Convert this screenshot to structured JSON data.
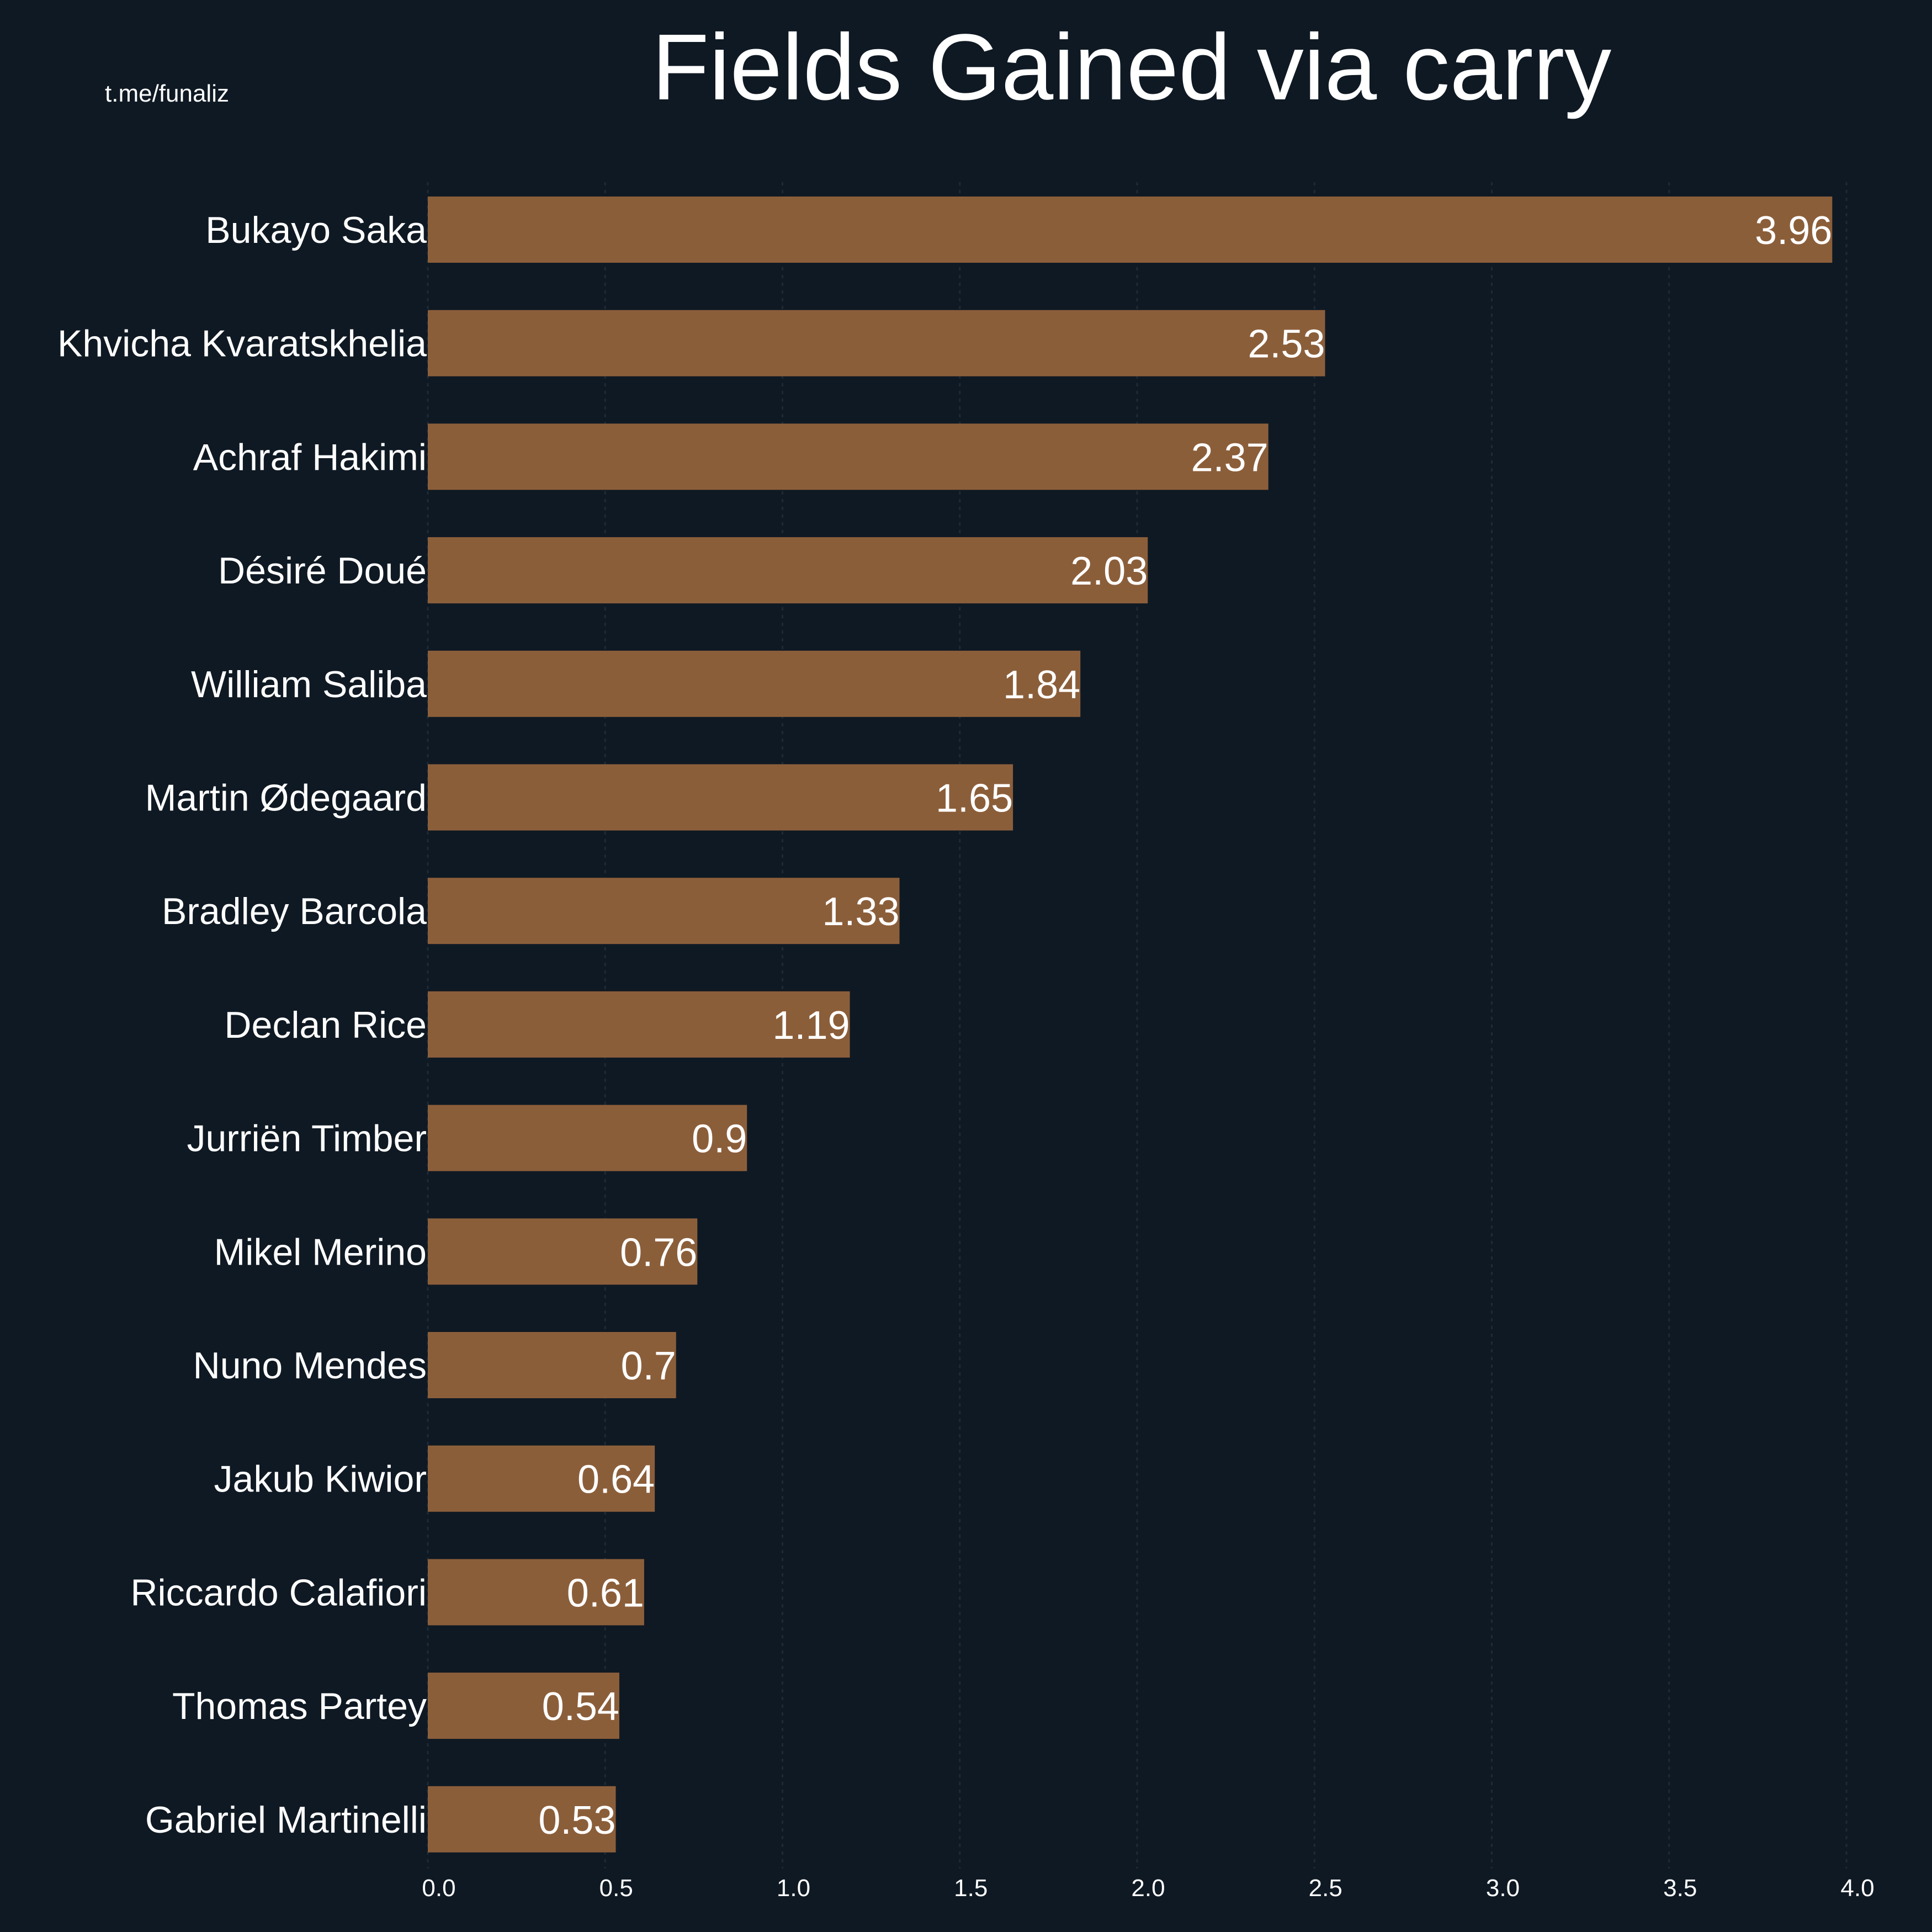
{
  "watermark": "t.me/funaliz",
  "chart_data": {
    "type": "bar",
    "orientation": "horizontal",
    "title": "Fields Gained via carry",
    "xlabel": "",
    "ylabel": "",
    "xlim": [
      0,
      4.0
    ],
    "grid": true,
    "categories": [
      "Bukayo Saka",
      "Khvicha Kvaratskhelia",
      "Achraf Hakimi",
      "Désiré Doué",
      "William Saliba",
      "Martin Ødegaard",
      "Bradley Barcola",
      "Declan Rice",
      "Jurriën Timber",
      "Mikel Merino",
      "Nuno Mendes",
      "Jakub Kiwior",
      "Riccardo Calafiori",
      "Thomas Partey",
      "Gabriel Martinelli"
    ],
    "values": [
      3.96,
      2.53,
      2.37,
      2.03,
      1.84,
      1.65,
      1.33,
      1.19,
      0.9,
      0.76,
      0.7,
      0.64,
      0.61,
      0.54,
      0.53
    ],
    "value_labels": [
      "3.96",
      "2.53",
      "2.37",
      "2.03",
      "1.84",
      "1.65",
      "1.33",
      "1.19",
      "0.9",
      "0.76",
      "0.7",
      "0.64",
      "0.61",
      "0.54",
      "0.53"
    ],
    "x_ticks": [
      0.0,
      0.5,
      1.0,
      1.5,
      2.0,
      2.5,
      3.0,
      3.5,
      4.0
    ],
    "x_tick_labels": [
      "0.0",
      "0.5",
      "1.0",
      "1.5",
      "2.0",
      "2.5",
      "3.0",
      "3.5",
      "4.0"
    ],
    "colors": {
      "background": "#0f1923",
      "bar": "#8b5e3a",
      "text": "#ffffff"
    }
  }
}
